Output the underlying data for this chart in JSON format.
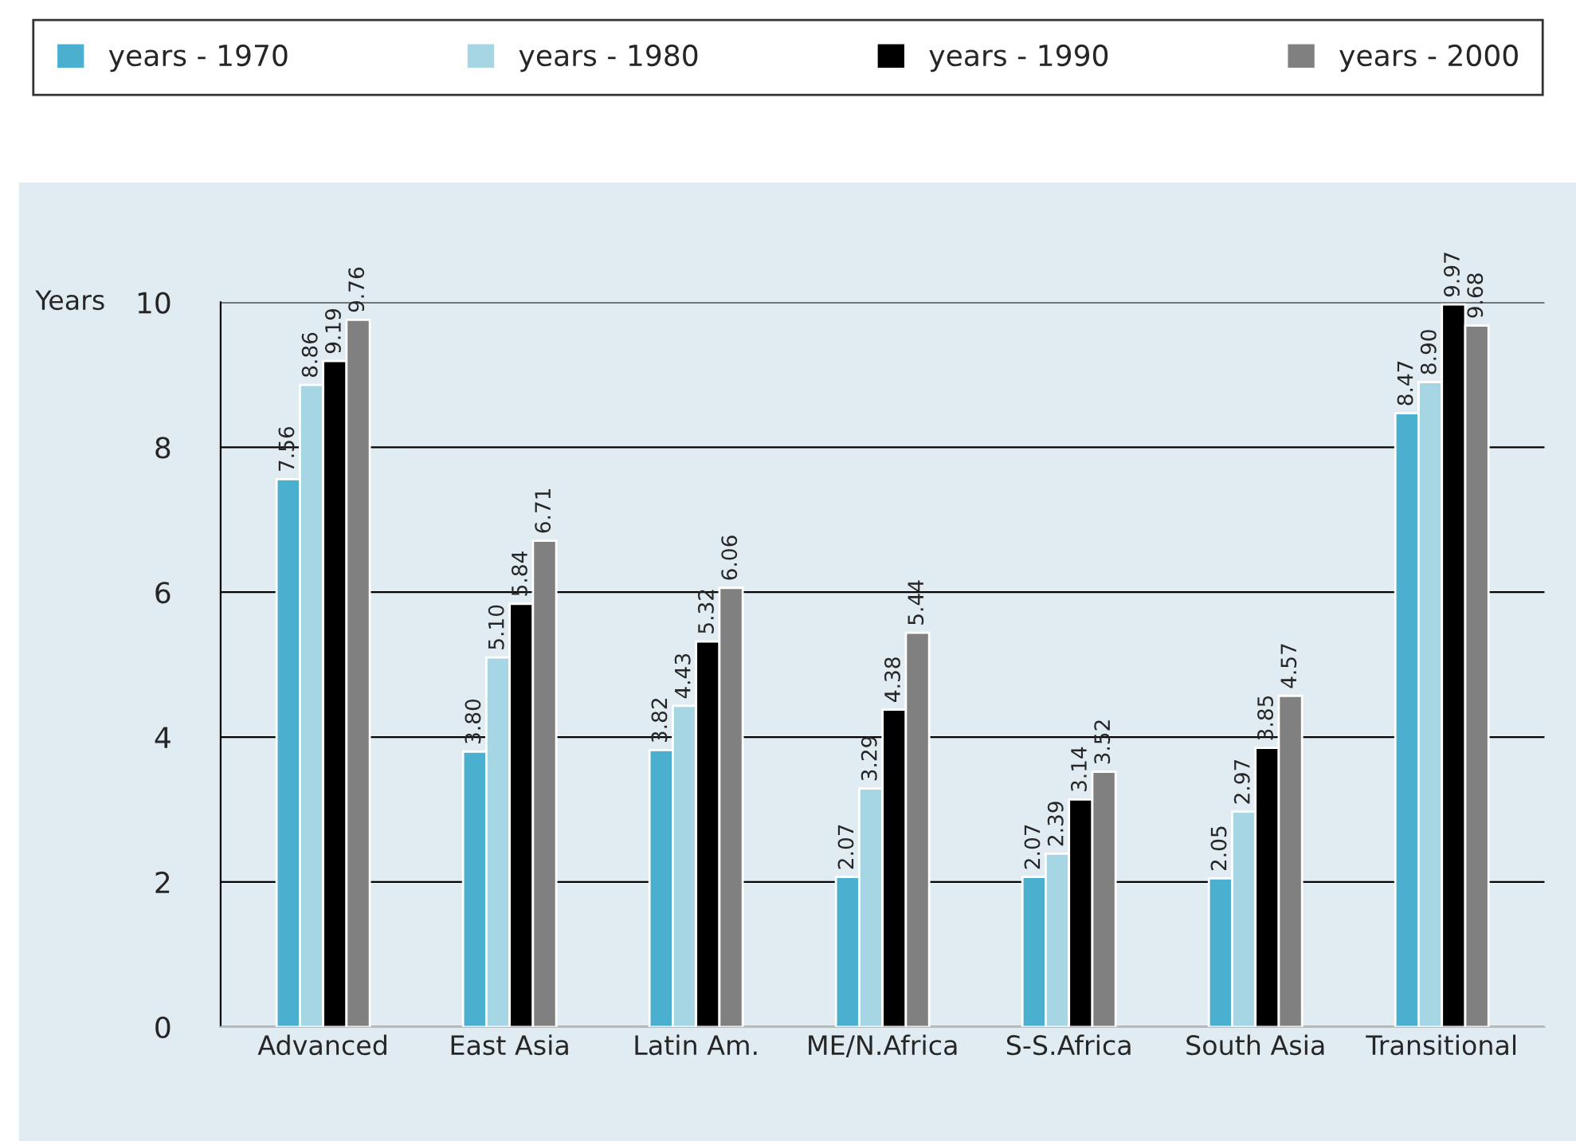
{
  "chart_data": {
    "type": "bar",
    "ylabel": "Years",
    "categories": [
      "Advanced",
      "East Asia",
      "Latin Am.",
      "ME/N.Africa",
      "S-S.Africa",
      "South Asia",
      "Transitional"
    ],
    "series": [
      {
        "name": "years - 1970",
        "color": "#4bafcf",
        "values": [
          7.56,
          3.8,
          3.82,
          2.07,
          2.07,
          2.05,
          8.47
        ],
        "value_labels": [
          "7.56",
          "3.80",
          "3.82",
          "2.07",
          "2.07",
          "2.05",
          "8.47"
        ]
      },
      {
        "name": "years - 1980",
        "color": "#a6d5e3",
        "values": [
          8.86,
          5.1,
          4.43,
          3.29,
          2.39,
          2.97,
          8.9
        ],
        "value_labels": [
          "8.86",
          "5.10",
          "4.43",
          "3.29",
          "2.39",
          "2.97",
          "8.90"
        ]
      },
      {
        "name": "years - 1990",
        "color": "#000000",
        "values": [
          9.19,
          5.84,
          5.32,
          4.38,
          3.14,
          3.85,
          9.97
        ],
        "value_labels": [
          "9.19",
          "5.84",
          "5.32",
          "4.38",
          "3.14",
          "3.85",
          "9.97"
        ]
      },
      {
        "name": "years - 2000",
        "color": "#808080",
        "values": [
          9.76,
          6.71,
          6.06,
          5.44,
          3.52,
          4.57,
          9.68
        ],
        "value_labels": [
          "9.76",
          "6.71",
          "6.06",
          "5.44",
          "3.52",
          "4.57",
          "9.68"
        ]
      }
    ],
    "ylim": [
      0,
      10
    ],
    "yticks": [
      0,
      2,
      4,
      6,
      8,
      10
    ],
    "grid": "y",
    "legend": "top"
  }
}
